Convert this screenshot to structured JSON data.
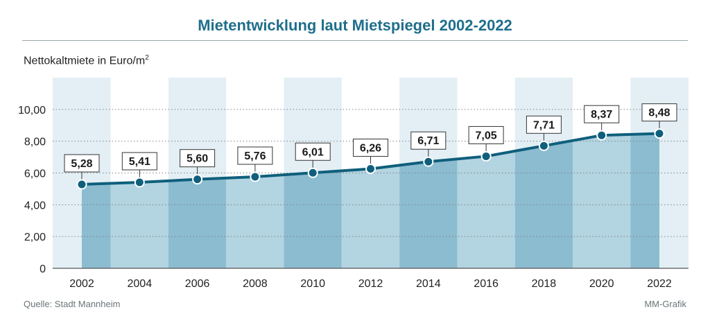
{
  "title": "Mietentwicklung laut Mietspiegel 2002-2022",
  "unit_label": "Nettokaltmiete in Euro/m",
  "unit_sup": "2",
  "source": "Quelle: Stadt Mannheim",
  "credit": "MM-Grafik",
  "colors": {
    "title": "#1f6e8c",
    "line": "#0f5f7c",
    "area_light": "#b3d4e1",
    "area_dark": "#8cbcd0",
    "band": "#e3eff4"
  },
  "chart_data": {
    "type": "area",
    "x": [
      "2002",
      "2004",
      "2006",
      "2008",
      "2010",
      "2012",
      "2014",
      "2016",
      "2018",
      "2020",
      "2022"
    ],
    "values": [
      5.28,
      5.41,
      5.6,
      5.76,
      6.01,
      6.26,
      6.71,
      7.05,
      7.71,
      8.37,
      8.48
    ],
    "data_labels": [
      "5,28",
      "5,41",
      "5,60",
      "5,76",
      "6,01",
      "6,26",
      "6,71",
      "7,05",
      "7,71",
      "8,37",
      "8,48"
    ],
    "y_ticks": [
      0,
      2,
      4,
      6,
      8,
      10
    ],
    "y_tick_labels": [
      "0",
      "2,00",
      "4,00",
      "6,00",
      "8,00",
      "10,00"
    ],
    "ylim": [
      0,
      12
    ],
    "ylabel": "Nettokaltmiete in Euro/m²",
    "grid": true
  }
}
